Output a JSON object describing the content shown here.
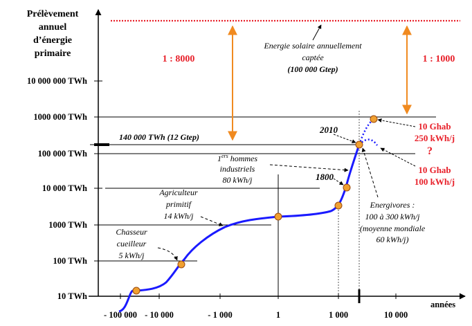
{
  "chart_data": {
    "type": "line",
    "y_axis_title": [
      "Prélèvement",
      "annuel",
      "d’énergie",
      "primaire"
    ],
    "x_axis_title": "années",
    "y_ticks": [
      "10 TWh",
      "100 TWh",
      "1000 TWh",
      "10 000 TWh",
      "100 000 TWh",
      "1000 000 TWh",
      "10 000 000 TWh"
    ],
    "x_ticks": [
      "- 100 000",
      "- 10 000",
      "- 1 000",
      "1",
      "1 000",
      "10 000"
    ],
    "scale": "log",
    "points": [
      {
        "x": "- 100 000",
        "y": 10
      },
      {
        "x": "- 40 000",
        "y": 13
      },
      {
        "x": "- 5 000",
        "y": 80
      },
      {
        "x": "1",
        "y": 1750
      },
      {
        "x": "1 000",
        "y": 3800
      },
      {
        "x": "1800",
        "y": 10500
      },
      {
        "x": "2010",
        "y": 140000
      }
    ],
    "projection_high": {
      "label": "10 Ghab 250 kWh/j",
      "y": 850000
    },
    "projection_low": {
      "label": "10 Ghab 100 kWh/j"
    },
    "solar_line_label": [
      "Energie solaire annuellement",
      "captée",
      "(100 000 Gtep)"
    ],
    "current_label": "140 000 TWh (12 Gtep)",
    "ratio_left": "1 : 8000",
    "ratio_right": "1 : 1000",
    "annotations": {
      "year_2010": "2010",
      "year_1800": "1800",
      "chasseur": [
        "Chasseur",
        "cueilleur",
        "5 kWh/j"
      ],
      "agriculteur": [
        "Agriculteur",
        "primitif",
        "14 kWh/j"
      ],
      "industriels": [
        "1ers hommes",
        "industriels",
        "80 kWh/j"
      ],
      "energivores": [
        "Energivores :",
        "100 à 300 kWh/j",
        "(moyenne mondiale",
        "60 kWh/j)"
      ],
      "question_mark": "?"
    },
    "colors": {
      "curve": "#1a1aff",
      "dots": "#f0a030",
      "solar_line": "#e8202a",
      "arrows": "#f08a20",
      "red_text": "#e8202a"
    }
  }
}
